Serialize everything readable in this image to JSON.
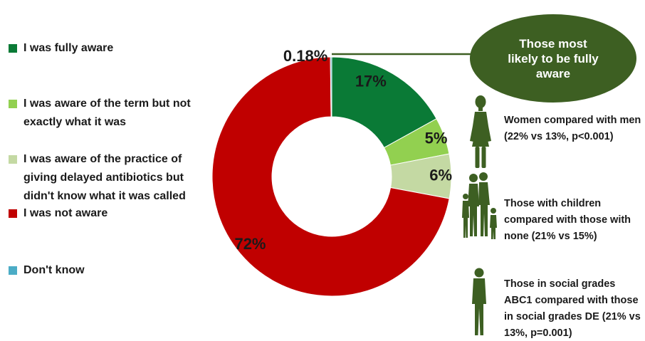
{
  "chart_data": {
    "type": "pie",
    "categories": [
      "I was fully aware",
      "I was aware of the term but not exactly what it was",
      "I was aware of the practice of giving delayed antibiotics but didn't know what it was called",
      "I was not aware",
      "Don't know"
    ],
    "values": [
      17,
      5,
      6,
      72,
      0.18
    ],
    "slice_labels": [
      "17%",
      "5%",
      "6%",
      "72%",
      "0.18%"
    ],
    "colors": [
      "#0a7a36",
      "#92d050",
      "#c4d9a3",
      "#c00000",
      "#4bacc6"
    ],
    "donut": true,
    "legend_placement": "left"
  },
  "legend": {
    "items": [
      {
        "label": "I was fully aware",
        "color": "#0a7a36"
      },
      {
        "label": "I was aware of the term but not exactly what it was",
        "color": "#92d050"
      },
      {
        "label": "I was aware of the practice of giving delayed antibiotics but didn't know what it was called",
        "color": "#c4d9a3"
      },
      {
        "label": "I was not aware",
        "color": "#c00000"
      },
      {
        "label": "Don't know",
        "color": "#4bacc6"
      }
    ]
  },
  "callout": {
    "text": "Those most likely to be fully aware",
    "color": "#3d5f22"
  },
  "facts": [
    {
      "icon": "woman-silhouette-icon",
      "text": "Women compared with men (22% vs 13%, p<0.001)"
    },
    {
      "icon": "family-silhouette-icon",
      "text": "Those with children compared with those with none (21% vs 15%)"
    },
    {
      "icon": "man-silhouette-icon",
      "text": "Those in social grades ABC1 compared with those in social grades DE (21% vs 13%, p=0.001)"
    }
  ],
  "icon_color": "#3d5f22"
}
